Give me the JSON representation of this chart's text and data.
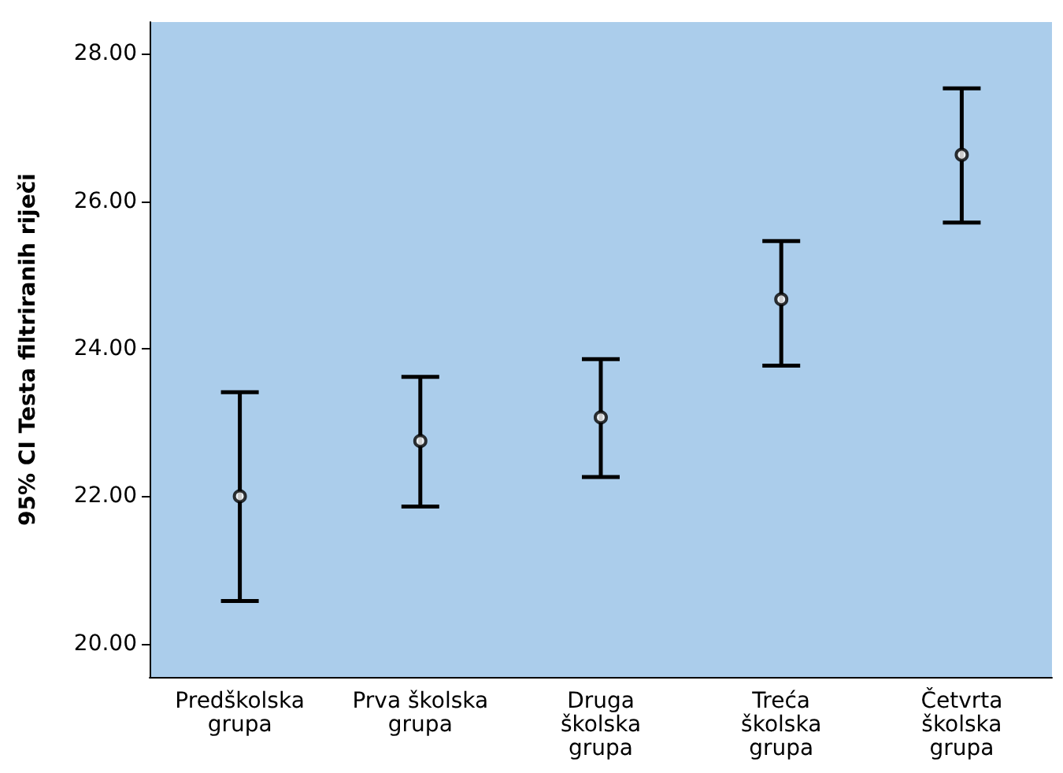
{
  "chart_data": {
    "type": "scatter",
    "ylabel": "95% CI Testa filtriranih riječi",
    "categories": [
      "Predškolska\ngrupa",
      "Prva školska\ngrupa",
      "Druga\nškolska\ngrupa",
      "Treća\nškolska\ngrupa",
      "Četvrta\nškolska\ngrupa"
    ],
    "series": [
      {
        "color": "#000000",
        "values": [
          22.0,
          22.75,
          23.07,
          24.67,
          26.63
        ],
        "errors": [
          [
            20.58,
            23.41
          ],
          [
            21.86,
            23.62
          ],
          [
            22.26,
            23.86
          ],
          [
            23.77,
            25.46
          ],
          [
            25.71,
            27.53
          ]
        ]
      }
    ],
    "marker": "circle",
    "grid": false,
    "legend": false,
    "ylim": [
      19.55,
      28.43
    ],
    "yticks": [
      {
        "value": 20,
        "label": "20.00"
      },
      {
        "value": 22,
        "label": "22.00"
      },
      {
        "value": 24,
        "label": "24.00"
      },
      {
        "value": 26,
        "label": "26.00"
      },
      {
        "value": 28,
        "label": "28.00"
      }
    ]
  }
}
